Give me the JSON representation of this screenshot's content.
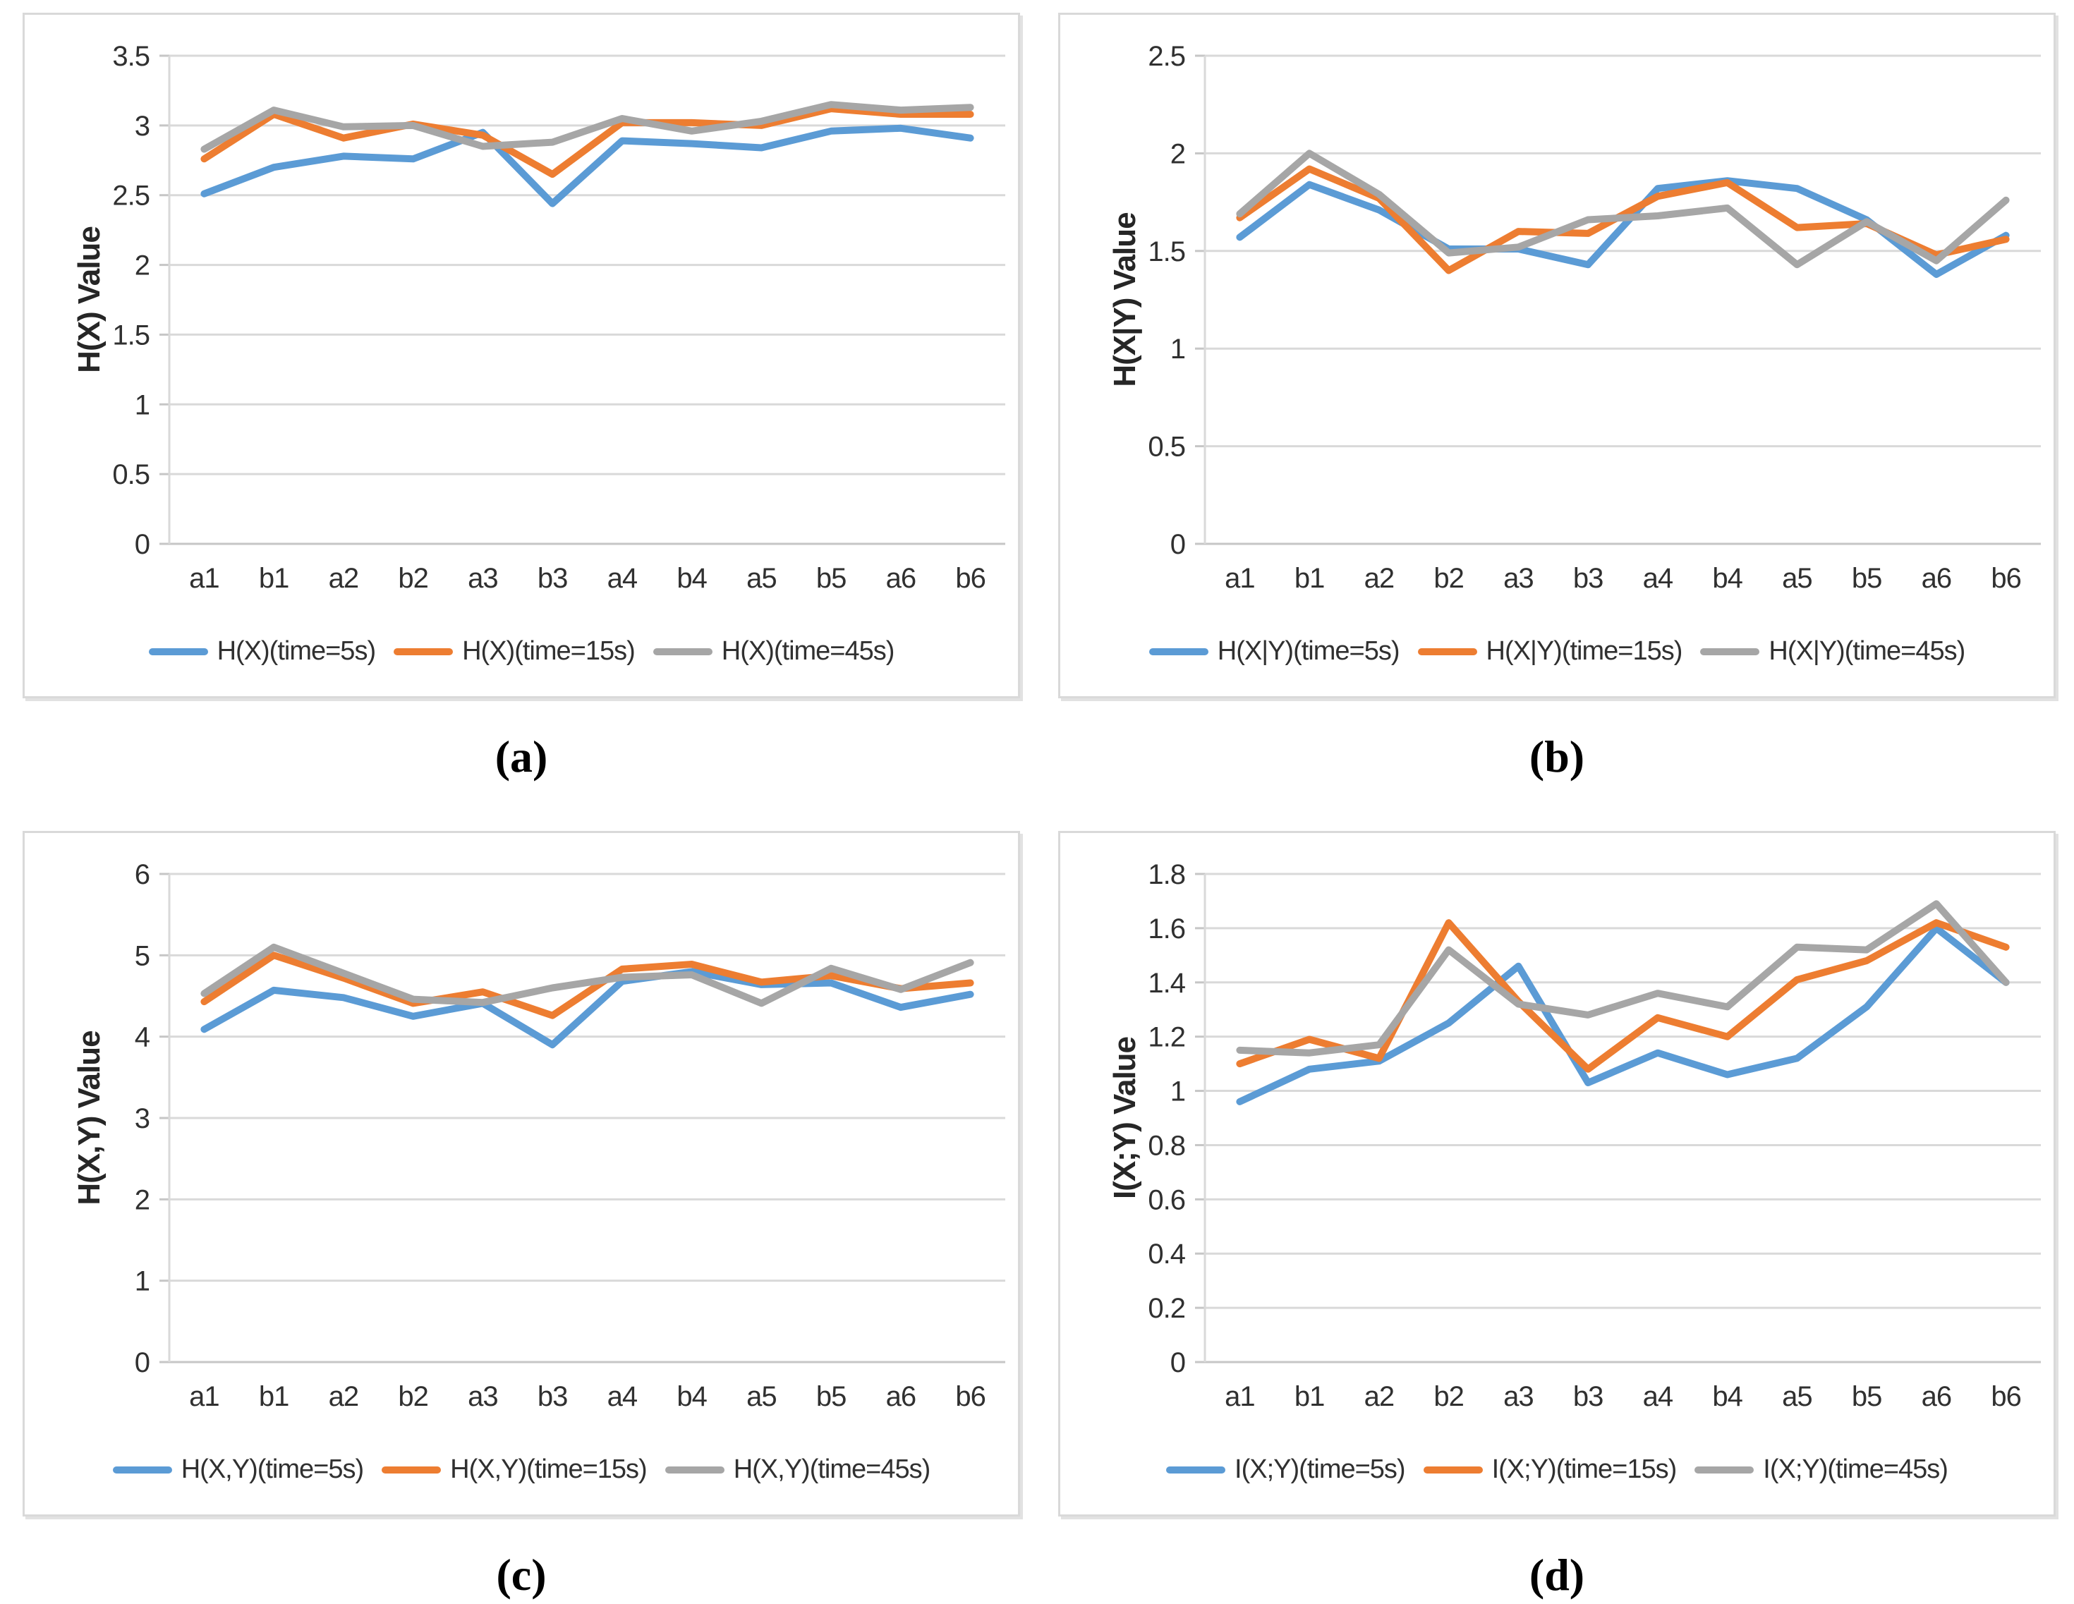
{
  "figure": {
    "background": "#ffffff",
    "grid_layout": "2x2"
  },
  "colors": {
    "series_blue": "#5B9BD5",
    "series_orange": "#ED7D31",
    "series_gray": "#A6A6A6",
    "gridline": "#D9D9D9",
    "axis_line": "#C6C6C6",
    "tick_text": "#303030",
    "panel_border": "#D9D9D9"
  },
  "chart_data": [
    {
      "id": "a",
      "type": "line",
      "caption": "(a)",
      "ylabel": "H(X) Value",
      "xlabel": "",
      "ylim": [
        0,
        3.5
      ],
      "ytick_labels": [
        "0",
        "0.5",
        "1",
        "1.5",
        "2",
        "2.5",
        "3",
        "3.5"
      ],
      "grid": true,
      "legend_position": "bottom",
      "categories": [
        "a1",
        "b1",
        "a2",
        "b2",
        "a3",
        "b3",
        "a4",
        "b4",
        "a5",
        "b5",
        "a6",
        "b6"
      ],
      "series": [
        {
          "name": "H(X)(time=5s)",
          "color": "#5B9BD5",
          "values": [
            2.51,
            2.7,
            2.78,
            2.76,
            2.95,
            2.44,
            2.89,
            2.87,
            2.84,
            2.96,
            2.98,
            2.91
          ]
        },
        {
          "name": "H(X)(time=15s)",
          "color": "#ED7D31",
          "values": [
            2.76,
            3.08,
            2.91,
            3.01,
            2.93,
            2.65,
            3.02,
            3.02,
            3.0,
            3.12,
            3.08,
            3.08
          ]
        },
        {
          "name": "H(X)(time=45s)",
          "color": "#A6A6A6",
          "values": [
            2.83,
            3.11,
            2.99,
            3.0,
            2.85,
            2.88,
            3.05,
            2.96,
            3.03,
            3.15,
            3.11,
            3.13
          ]
        }
      ]
    },
    {
      "id": "b",
      "type": "line",
      "caption": "(b)",
      "ylabel": "H(X|Y) Value",
      "xlabel": "",
      "ylim": [
        0,
        2.5
      ],
      "ytick_labels": [
        "0",
        "0.5",
        "1",
        "1.5",
        "2",
        "2.5"
      ],
      "grid": true,
      "legend_position": "bottom",
      "categories": [
        "a1",
        "b1",
        "a2",
        "b2",
        "a3",
        "b3",
        "a4",
        "b4",
        "a5",
        "b5",
        "a6",
        "b6"
      ],
      "series": [
        {
          "name": "H(X|Y)(time=5s)",
          "color": "#5B9BD5",
          "values": [
            1.57,
            1.84,
            1.71,
            1.51,
            1.51,
            1.43,
            1.82,
            1.86,
            1.82,
            1.66,
            1.38,
            1.58
          ]
        },
        {
          "name": "H(X|Y)(time=15s)",
          "color": "#ED7D31",
          "values": [
            1.67,
            1.92,
            1.77,
            1.4,
            1.6,
            1.59,
            1.78,
            1.85,
            1.62,
            1.64,
            1.48,
            1.56
          ]
        },
        {
          "name": "H(X|Y)(time=45s)",
          "color": "#A6A6A6",
          "values": [
            1.69,
            2.0,
            1.79,
            1.49,
            1.52,
            1.66,
            1.68,
            1.72,
            1.43,
            1.65,
            1.45,
            1.76
          ]
        }
      ]
    },
    {
      "id": "c",
      "type": "line",
      "caption": "(c)",
      "ylabel": "H(X,Y) Value",
      "xlabel": "",
      "ylim": [
        0,
        6
      ],
      "ytick_labels": [
        "0",
        "1",
        "2",
        "3",
        "4",
        "5",
        "6"
      ],
      "grid": true,
      "legend_position": "bottom",
      "categories": [
        "a1",
        "b1",
        "a2",
        "b2",
        "a3",
        "b3",
        "a4",
        "b4",
        "a5",
        "b5",
        "a6",
        "b6"
      ],
      "series": [
        {
          "name": "H(X,Y)(time=5s)",
          "color": "#5B9BD5",
          "values": [
            4.09,
            4.57,
            4.48,
            4.25,
            4.41,
            3.9,
            4.68,
            4.8,
            4.64,
            4.66,
            4.36,
            4.52
          ]
        },
        {
          "name": "H(X,Y)(time=15s)",
          "color": "#ED7D31",
          "values": [
            4.43,
            5.0,
            4.72,
            4.41,
            4.55,
            4.26,
            4.83,
            4.89,
            4.67,
            4.75,
            4.59,
            4.66
          ]
        },
        {
          "name": "H(X,Y)(time=45s)",
          "color": "#A6A6A6",
          "values": [
            4.53,
            5.1,
            4.78,
            4.46,
            4.42,
            4.6,
            4.73,
            4.76,
            4.41,
            4.84,
            4.58,
            4.91
          ]
        }
      ]
    },
    {
      "id": "d",
      "type": "line",
      "caption": "(d)",
      "ylabel": "I(X;Y) Value",
      "xlabel": "",
      "ylim": [
        0,
        1.8
      ],
      "ytick_labels": [
        "0",
        "0.2",
        "0.4",
        "0.6",
        "0.8",
        "1",
        "1.2",
        "1.4",
        "1.6",
        "1.8"
      ],
      "grid": true,
      "legend_position": "bottom",
      "categories": [
        "a1",
        "b1",
        "a2",
        "b2",
        "a3",
        "b3",
        "a4",
        "b4",
        "a5",
        "b5",
        "a6",
        "b6"
      ],
      "series": [
        {
          "name": "I(X;Y)(time=5s)",
          "color": "#5B9BD5",
          "values": [
            0.96,
            1.08,
            1.11,
            1.25,
            1.46,
            1.03,
            1.14,
            1.06,
            1.12,
            1.31,
            1.6,
            1.4
          ]
        },
        {
          "name": "I(X;Y)(time=15s)",
          "color": "#ED7D31",
          "values": [
            1.1,
            1.19,
            1.12,
            1.62,
            1.33,
            1.08,
            1.27,
            1.2,
            1.41,
            1.48,
            1.62,
            1.53
          ]
        },
        {
          "name": "I(X;Y)(time=45s)",
          "color": "#A6A6A6",
          "values": [
            1.15,
            1.14,
            1.17,
            1.52,
            1.32,
            1.28,
            1.36,
            1.31,
            1.53,
            1.52,
            1.69,
            1.4
          ]
        }
      ]
    }
  ]
}
